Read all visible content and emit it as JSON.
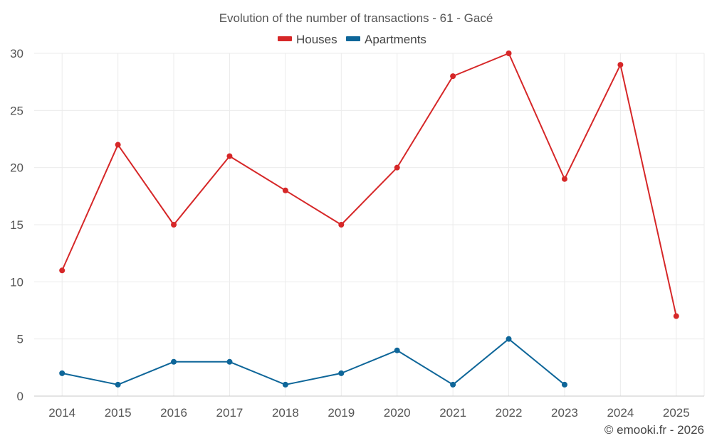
{
  "colors": {
    "houses": "#d62728",
    "apartments": "#0e6699",
    "grid": "#ebebeb",
    "text": "#555555"
  },
  "chart_data": {
    "type": "line",
    "title": "Evolution of the number of transactions - 61 - Gacé",
    "x": [
      "2014",
      "2015",
      "2016",
      "2017",
      "2018",
      "2019",
      "2020",
      "2021",
      "2022",
      "2023",
      "2024",
      "2025"
    ],
    "series": [
      {
        "name": "Houses",
        "color": "#d62728",
        "values": [
          11,
          22,
          15,
          21,
          18,
          15,
          20,
          28,
          30,
          19,
          29,
          7
        ]
      },
      {
        "name": "Apartments",
        "color": "#0e6699",
        "values": [
          2,
          1,
          3,
          3,
          1,
          2,
          4,
          1,
          5,
          1,
          null,
          null
        ]
      }
    ],
    "ylim": [
      0,
      30
    ],
    "yticks": [
      0,
      5,
      10,
      15,
      20,
      25,
      30
    ],
    "grid": true,
    "legend": "top-center",
    "xlabel": "",
    "ylabel": ""
  },
  "credit": "© emooki.fr - 2026"
}
